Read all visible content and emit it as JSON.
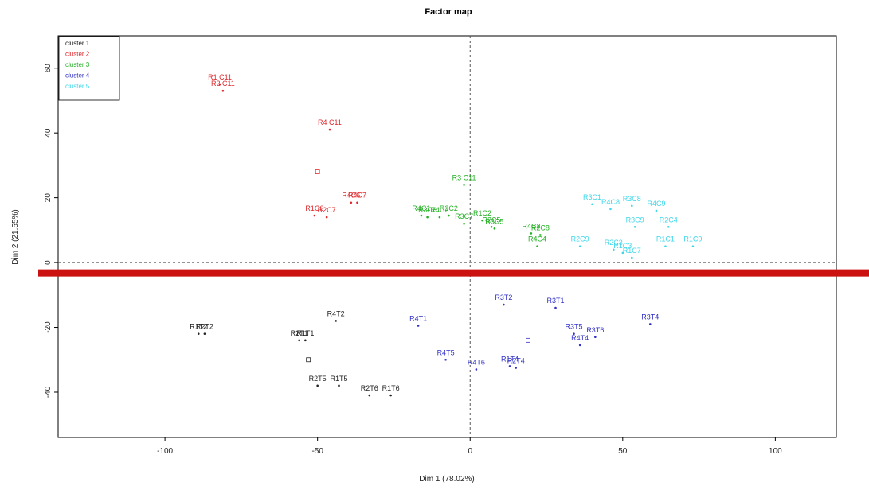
{
  "chart_data": {
    "type": "scatter",
    "title": "Factor map",
    "xlabel": "Dim 1 (78.02%)",
    "ylabel": "Dim 2 (21.55%)",
    "xlim": [
      -135,
      120
    ],
    "ylim": [
      -54,
      70
    ],
    "xticks": [
      -100,
      -50,
      0,
      50,
      100
    ],
    "yticks": [
      -40,
      -20,
      0,
      20,
      40,
      60
    ],
    "grid": false,
    "reference_lines": {
      "x": 0,
      "y": 0
    },
    "legend_position": "top-left",
    "legend": [
      "cluster 1",
      "cluster 2",
      "cluster 3",
      "cluster 4",
      "cluster 5"
    ],
    "colors": {
      "cluster 1": "#222222",
      "cluster 2": "#e0282c",
      "cluster 3": "#22b022",
      "cluster 4": "#3232c8",
      "cluster 5": "#3ed7ea"
    },
    "annotation_bar_color": "#cc1111",
    "annotation_bar_y": -3.2,
    "centroids": [
      {
        "cluster": "cluster 2",
        "x": -50,
        "y": 28
      },
      {
        "cluster": "cluster 4",
        "x": 19,
        "y": -24
      },
      {
        "cluster": "cluster 1",
        "x": -53,
        "y": -30
      }
    ],
    "series": [
      {
        "name": "cluster 1",
        "points": [
          {
            "label": "R1T2",
            "x": -89,
            "y": -22
          },
          {
            "label": "R2T2",
            "x": -87,
            "y": -22
          },
          {
            "label": "R2T1",
            "x": -56,
            "y": -24
          },
          {
            "label": "R1T1",
            "x": -54,
            "y": -24
          },
          {
            "label": "R4T2",
            "x": -44,
            "y": -18
          },
          {
            "label": "R2T5",
            "x": -50,
            "y": -38
          },
          {
            "label": "R1T5",
            "x": -43,
            "y": -38
          },
          {
            "label": "R2T6",
            "x": -33,
            "y": -41
          },
          {
            "label": "R1T6",
            "x": -26,
            "y": -41
          }
        ]
      },
      {
        "name": "cluster 2",
        "points": [
          {
            "label": "R1 C11",
            "x": -82,
            "y": 55
          },
          {
            "label": "R2 C11",
            "x": -81,
            "y": 53
          },
          {
            "label": "R4 C11",
            "x": -46,
            "y": 41
          },
          {
            "label": "R1C6",
            "x": -51,
            "y": 14.5
          },
          {
            "label": "R2C7",
            "x": -47,
            "y": 14
          },
          {
            "label": "R4C6",
            "x": -39,
            "y": 18.5
          },
          {
            "label": "R4C7",
            "x": -37,
            "y": 18.5
          }
        ]
      },
      {
        "name": "cluster 3",
        "points": [
          {
            "label": "R3 C11",
            "x": -2,
            "y": 24
          },
          {
            "label": "R4C1",
            "x": -16,
            "y": 14.5
          },
          {
            "label": "R3C6",
            "x": -14,
            "y": 14
          },
          {
            "label": "R4C2",
            "x": -10,
            "y": 14
          },
          {
            "label": "R2C2",
            "x": -7,
            "y": 14.5
          },
          {
            "label": "R3C7",
            "x": -2,
            "y": 12
          },
          {
            "label": "R1C2",
            "x": 4,
            "y": 13
          },
          {
            "label": "R2C5",
            "x": 7,
            "y": 11
          },
          {
            "label": "R3C5",
            "x": 8,
            "y": 10.5
          },
          {
            "label": "R4C3",
            "x": 20,
            "y": 9
          },
          {
            "label": "R2C8",
            "x": 23,
            "y": 8.5
          },
          {
            "label": "R4C4",
            "x": 22,
            "y": 5
          }
        ]
      },
      {
        "name": "cluster 4",
        "points": [
          {
            "label": "R4T1",
            "x": -17,
            "y": -19.5
          },
          {
            "label": "R3T2",
            "x": 11,
            "y": -13
          },
          {
            "label": "R3T1",
            "x": 28,
            "y": -14
          },
          {
            "label": "R3T5",
            "x": 34,
            "y": -22
          },
          {
            "label": "R3T6",
            "x": 41,
            "y": -23
          },
          {
            "label": "R4T4",
            "x": 36,
            "y": -25.5
          },
          {
            "label": "R3T4",
            "x": 59,
            "y": -19
          },
          {
            "label": "R4T5",
            "x": -8,
            "y": -30
          },
          {
            "label": "R4T6",
            "x": 2,
            "y": -33
          },
          {
            "label": "R1T4",
            "x": 13,
            "y": -32
          },
          {
            "label": "R2T4",
            "x": 15,
            "y": -32.5
          }
        ]
      },
      {
        "name": "cluster 5",
        "points": [
          {
            "label": "R3C1",
            "x": 40,
            "y": 18
          },
          {
            "label": "R4C8",
            "x": 46,
            "y": 16.5
          },
          {
            "label": "R3C8",
            "x": 53,
            "y": 17.5
          },
          {
            "label": "R4C9",
            "x": 61,
            "y": 16
          },
          {
            "label": "R3C9",
            "x": 54,
            "y": 11
          },
          {
            "label": "R2C4",
            "x": 65,
            "y": 11
          },
          {
            "label": "R2C9",
            "x": 36,
            "y": 5
          },
          {
            "label": "R2C3",
            "x": 47,
            "y": 4
          },
          {
            "label": "R1C3",
            "x": 50,
            "y": 3
          },
          {
            "label": "R1C7",
            "x": 53,
            "y": 1.5
          },
          {
            "label": "R1C1",
            "x": 64,
            "y": 5
          },
          {
            "label": "R1C9",
            "x": 73,
            "y": 5
          }
        ]
      }
    ]
  }
}
